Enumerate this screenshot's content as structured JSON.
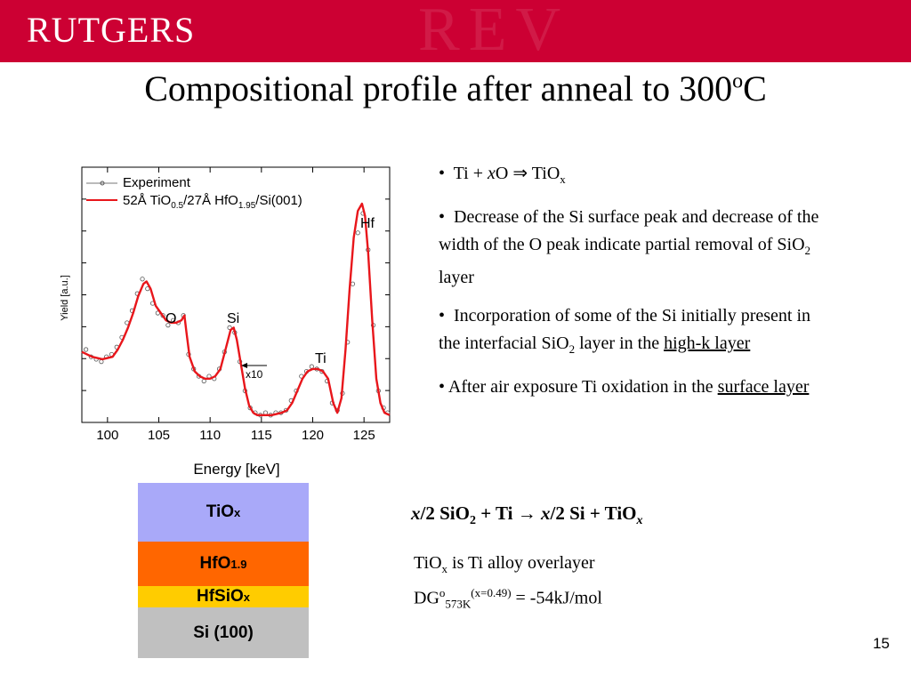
{
  "header": {
    "logo": "RUTGERS",
    "watermark": "REV",
    "bg_color": "#cc0033"
  },
  "title": {
    "text": "Compositional profile after anneal to 300",
    "sup": "o",
    "suffix": "C"
  },
  "bullets": {
    "b1": {
      "bullet": "•",
      "a": "Ti + ",
      "x": "x",
      "b": "O ⇒ TiO",
      "sub": "x"
    },
    "b2": {
      "bullet": "•",
      "text": "Decrease of the Si surface peak and decrease of the width of the O peak indicate partial removal of SiO",
      "sub": "2",
      "tail": " layer"
    },
    "b3": {
      "bullet": "•",
      "text": "Incorporation of some of the Si initially present in the interfacial SiO",
      "sub": "2",
      "mid": " layer in the ",
      "link": "high-k layer"
    },
    "b4": {
      "bullet": "•",
      "text": "After air exposure Ti oxidation in the ",
      "link": "surface layer"
    }
  },
  "chart_data": {
    "type": "line",
    "xlabel": "Energy [keV]",
    "ylabel": "Yield [a.u.]",
    "xlim": [
      97.5,
      127.5
    ],
    "ylim": [
      0,
      1.05
    ],
    "xticks": [
      100,
      105,
      110,
      115,
      120,
      125
    ],
    "tick_labels": [
      "100",
      "105",
      "110",
      "115",
      "120",
      "125"
    ],
    "legend": {
      "experiment": "Experiment",
      "fit_pre": "52Å TiO",
      "fit_s1": "0.5",
      "fit_mid": "/27Å HfO",
      "fit_s2": "1.95",
      "fit_post": "/Si(001)"
    },
    "series": [
      {
        "name": "52Å TiO0.5/27Å HfO1.95/Si(001)",
        "style": "line",
        "color": "#e8161b",
        "x": [
          97.5,
          98.5,
          99.5,
          100.5,
          101,
          101.5,
          102,
          102.5,
          103,
          103.5,
          103.8,
          104.2,
          104.7,
          105.2,
          105.7,
          106.2,
          106.7,
          107.2,
          107.5,
          107.7,
          108,
          108.5,
          109,
          109.5,
          110,
          110.5,
          111,
          111.5,
          112,
          112.3,
          112.6,
          113,
          113.4,
          113.8,
          114.2,
          114.6,
          115,
          116,
          117,
          117.5,
          118,
          118.5,
          119,
          119.5,
          120,
          120.5,
          121,
          121.5,
          122,
          122.4,
          122.8,
          123.2,
          123.6,
          124,
          124.4,
          124.8,
          125.1,
          125.4,
          125.8,
          126.2,
          126.6,
          127,
          127.5
        ],
        "values": [
          0.29,
          0.27,
          0.26,
          0.27,
          0.3,
          0.34,
          0.39,
          0.45,
          0.52,
          0.57,
          0.58,
          0.55,
          0.48,
          0.45,
          0.42,
          0.41,
          0.41,
          0.42,
          0.44,
          0.37,
          0.27,
          0.21,
          0.19,
          0.18,
          0.18,
          0.19,
          0.22,
          0.3,
          0.38,
          0.39,
          0.34,
          0.24,
          0.14,
          0.07,
          0.04,
          0.03,
          0.03,
          0.03,
          0.04,
          0.05,
          0.08,
          0.13,
          0.18,
          0.21,
          0.22,
          0.22,
          0.21,
          0.18,
          0.08,
          0.04,
          0.1,
          0.3,
          0.55,
          0.76,
          0.87,
          0.9,
          0.85,
          0.7,
          0.42,
          0.18,
          0.08,
          0.04,
          0.03
        ]
      },
      {
        "name": "Experiment",
        "style": "markers",
        "color": "#555555",
        "x": [
          97.9,
          98.4,
          98.9,
          99.4,
          99.9,
          100.4,
          100.9,
          101.4,
          101.9,
          102.4,
          102.9,
          103.4,
          103.9,
          104.4,
          104.9,
          105.4,
          105.9,
          106.4,
          106.9,
          107.4,
          107.9,
          108.4,
          108.9,
          109.4,
          109.9,
          110.4,
          110.9,
          111.4,
          111.9,
          112.4,
          112.9,
          113.4,
          113.9,
          114.4,
          114.9,
          115.4,
          115.9,
          116.4,
          116.9,
          117.4,
          117.9,
          118.4,
          118.9,
          119.4,
          119.9,
          120.4,
          120.9,
          121.4,
          121.9,
          122.4,
          122.9,
          123.4,
          123.9,
          124.4,
          124.9,
          125.4,
          125.9,
          126.4,
          126.9,
          127.3
        ],
        "values": [
          0.3,
          0.27,
          0.26,
          0.25,
          0.27,
          0.28,
          0.31,
          0.35,
          0.41,
          0.46,
          0.53,
          0.59,
          0.55,
          0.49,
          0.45,
          0.44,
          0.4,
          0.42,
          0.41,
          0.44,
          0.28,
          0.22,
          0.19,
          0.17,
          0.19,
          0.18,
          0.22,
          0.29,
          0.39,
          0.37,
          0.25,
          0.13,
          0.06,
          0.04,
          0.03,
          0.04,
          0.03,
          0.04,
          0.04,
          0.05,
          0.09,
          0.13,
          0.19,
          0.21,
          0.23,
          0.22,
          0.21,
          0.17,
          0.08,
          0.05,
          0.12,
          0.33,
          0.57,
          0.78,
          0.86,
          0.71,
          0.4,
          0.13,
          0.06,
          0.04
        ]
      }
    ],
    "annotations": {
      "o": "O",
      "si": "Si",
      "ti": "Ti",
      "hf": "Hf",
      "x10": "x10"
    }
  },
  "stack": [
    {
      "base": "TiO",
      "sub": "x",
      "color": "#a9a9f9"
    },
    {
      "base": "HfO",
      "sub": "1.9",
      "color": "#ff6600"
    },
    {
      "base": "HfSiO",
      "sub": "x",
      "color": "#ffcc00"
    },
    {
      "base": "Si (100)",
      "sub": "",
      "color": "#c0c0c0"
    }
  ],
  "reaction": {
    "x1": "x",
    "p1": "/2 SiO",
    "s1": "2",
    "p2": " + Ti  → ",
    "x2": "x",
    "p3": "/2 Si + TiO",
    "s3": "x"
  },
  "note": {
    "l1_a": "TiO",
    "l1_sub": "x",
    "l1_b": " is Ti alloy overlayer",
    "l2_a": "DG",
    "l2_sup1": "o",
    "l2_sub": "573K",
    "l2_sup2": "(x=0.49)",
    "l2_b": " = -54kJ/mol"
  },
  "page_number": "15"
}
